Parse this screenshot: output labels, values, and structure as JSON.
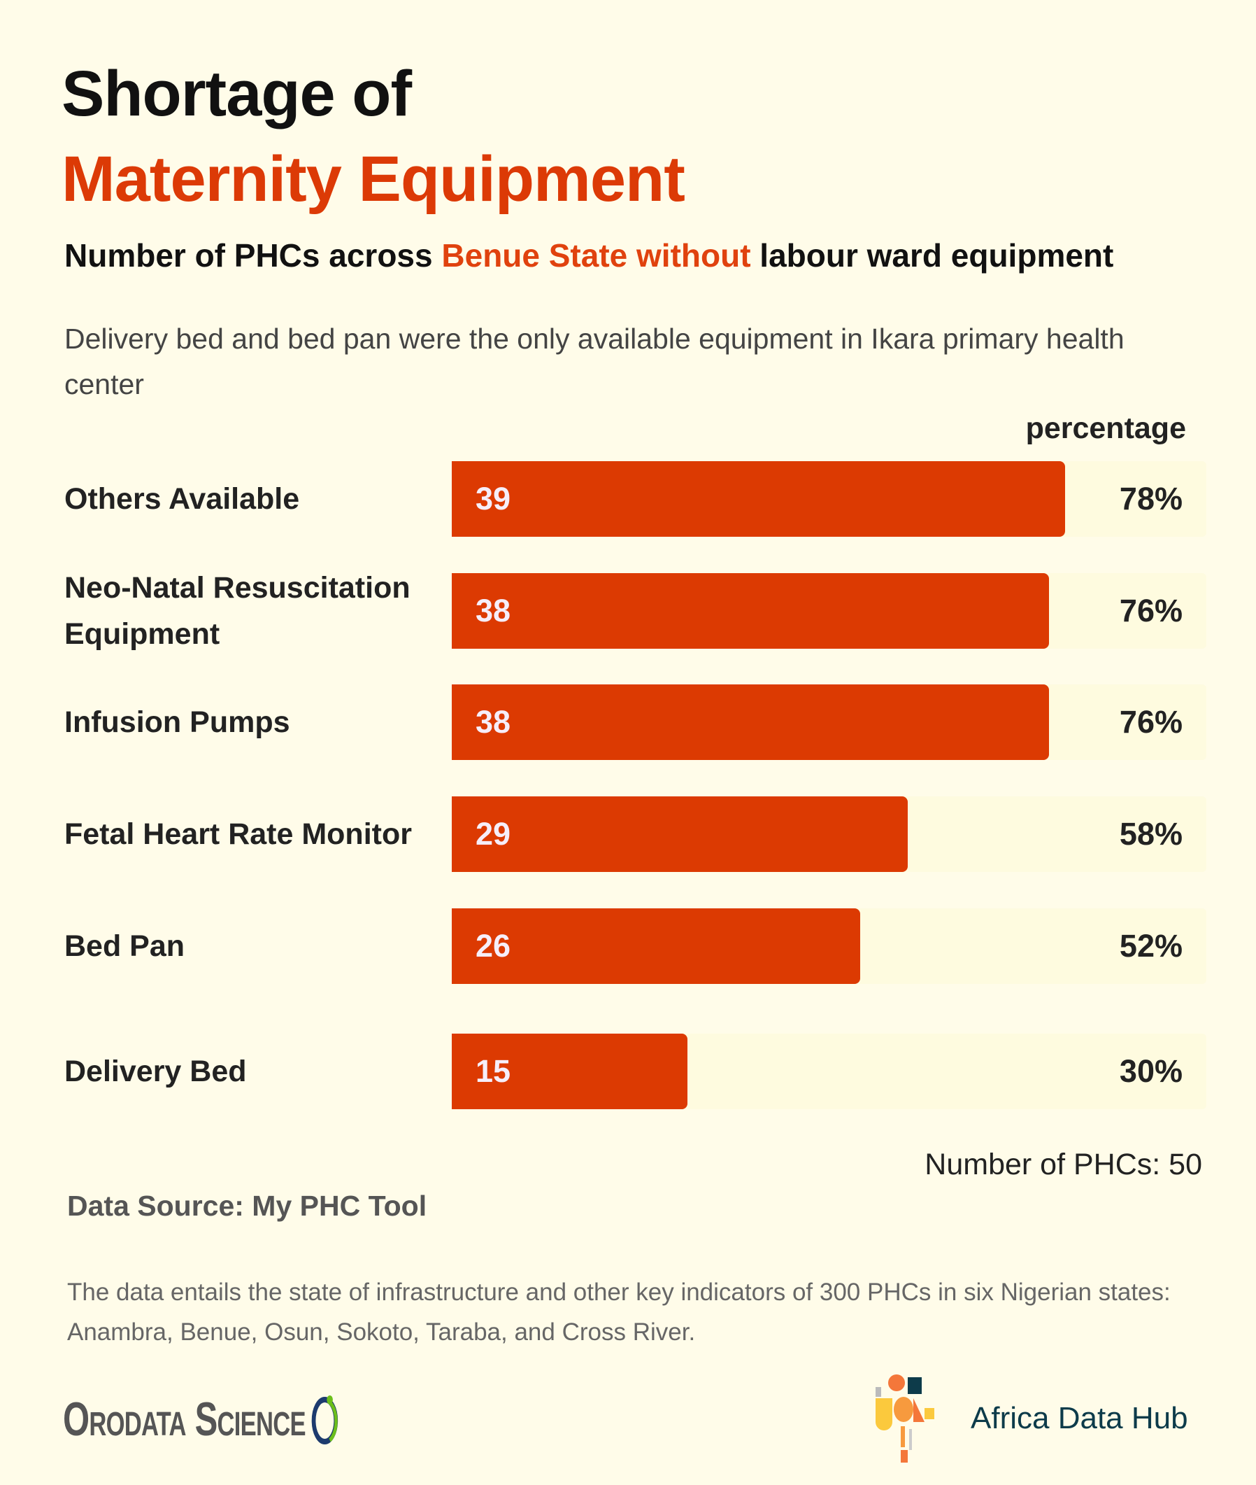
{
  "title": {
    "line1": "Shortage of",
    "line2": "Maternity Equipment"
  },
  "subtitle": {
    "part1": "Number of  PHCs across ",
    "highlight": "Benue State without",
    "part2": " labour ward equipment"
  },
  "description": "Delivery bed and bed pan were the only available equipment in Ikara primary health center",
  "chart_data": {
    "type": "bar",
    "orientation": "horizontal",
    "value_column_header": "percentage",
    "categories": [
      "Others Available",
      "Neo-Natal Resuscitation Equipment",
      "Infusion Pumps",
      "Fetal Heart Rate Monitor",
      "Bed Pan",
      "Delivery Bed"
    ],
    "values": [
      39,
      38,
      38,
      29,
      26,
      15
    ],
    "percentages": [
      "78%",
      "76%",
      "76%",
      "58%",
      "52%",
      "30%"
    ],
    "xlim": [
      0,
      48
    ],
    "total_label": "Number of PHCs: 50",
    "colors": {
      "bar": "#dc3a02",
      "track": "#fefbdf"
    }
  },
  "source": "Data Source: My PHC Tool",
  "footnote": "The data entails the state of infrastructure and other key indicators of 300 PHCs in six Nigerian states: Anambra, Benue, Osun, Sokoto, Taraba, and Cross River.",
  "logos": {
    "left": "Orodata Science",
    "right": "Africa Data Hub"
  }
}
